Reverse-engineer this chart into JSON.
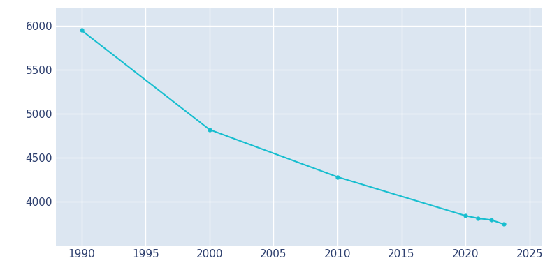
{
  "years": [
    1990,
    2000,
    2010,
    2020,
    2021,
    2022,
    2023
  ],
  "population": [
    5950,
    4820,
    4281,
    3840,
    3810,
    3792,
    3744
  ],
  "line_color": "#17becf",
  "marker_color": "#17becf",
  "axes_background_color": "#dce6f1",
  "figure_background_color": "#ffffff",
  "grid_color": "#ffffff",
  "tick_color": "#2d3f6e",
  "xlim": [
    1988,
    2026
  ],
  "ylim": [
    3500,
    6200
  ],
  "yticks": [
    4000,
    4500,
    5000,
    5500,
    6000
  ],
  "xticks": [
    1990,
    1995,
    2000,
    2005,
    2010,
    2015,
    2020,
    2025
  ]
}
